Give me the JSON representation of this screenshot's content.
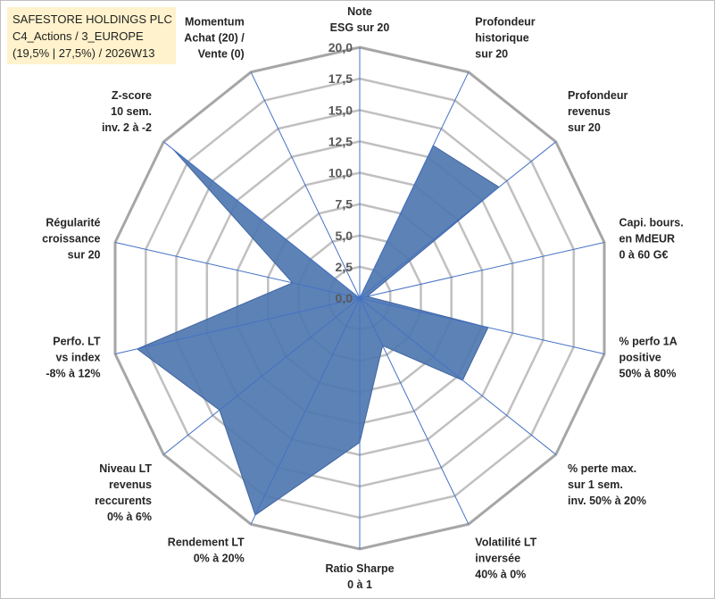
{
  "title_box": {
    "line1": "SAFESTORE HOLDINGS PLC",
    "line2": "C4_Actions / 3_EUROPE",
    "line3": "(19,5% | 27,5%) / 2026W13",
    "background": "#fff2cc"
  },
  "colors": {
    "fill": "#4f77b0",
    "spoke": "#4472c4",
    "grid": "#c0c0c0",
    "grid_outer": "#a6a6a6"
  },
  "chart_data": {
    "type": "radar",
    "title": "SAFESTORE HOLDINGS PLC",
    "categories": [
      [
        "Note",
        "ESG sur 20"
      ],
      [
        "Profondeur",
        "historique",
        "sur 20"
      ],
      [
        "Profondeur",
        "revenus",
        "sur 20"
      ],
      [
        "Capi. bours.",
        "en MdEUR",
        "0 à 60 G€"
      ],
      [
        "% perfo 1A",
        "positive",
        "50% à 80%"
      ],
      [
        "% perte max.",
        "sur 1 sem.",
        "inv. 50% à 20%"
      ],
      [
        "Volatilité LT",
        "inversée",
        "40% à 0%"
      ],
      [
        "Ratio Sharpe",
        "0 à 1"
      ],
      [
        "Rendement LT",
        "0% à 20%"
      ],
      [
        "Niveau LT",
        "revenus",
        "reccurents",
        "0% à 6%"
      ],
      [
        "Perfo. LT",
        "vs index",
        "-8% à 12%"
      ],
      [
        "Régularité",
        "croissance",
        "sur 20"
      ],
      [
        "Z-score",
        "10 sem.",
        "inv. 2 à -2"
      ],
      [
        "Momentum",
        "Achat (20) /",
        "Vente (0)"
      ]
    ],
    "values": [
      0,
      13.5,
      14.2,
      0.6,
      10.5,
      10.5,
      4.2,
      11.5,
      19.2,
      14.3,
      18.2,
      5.5,
      19.0,
      0
    ],
    "r_ticks": [
      "0,0",
      "2,5",
      "5,0",
      "7,5",
      "10,0",
      "12,5",
      "15,0",
      "17,5",
      "20,0"
    ],
    "r_range": [
      0,
      20
    ],
    "grid": true
  }
}
